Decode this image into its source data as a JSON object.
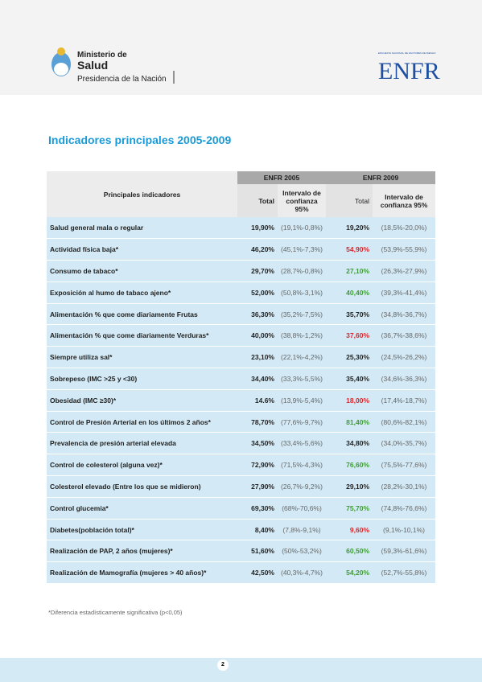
{
  "header": {
    "ministry_line1": "Ministerio de",
    "ministry_line2": "Salud",
    "ministry_line3": "Presidencia de la Nación",
    "enfr_small": "ENCUESTA NACIONAL DE FACTORES DE RIESGO",
    "enfr_logo": "ENFR"
  },
  "title": "Indicadores principales 2005-2009",
  "table": {
    "col_indicator": "Principales indicadores",
    "group_2005": "ENFR 2005",
    "group_2009": "ENFR 2009",
    "total_2005": "Total",
    "ic_2005": "Intervalo de confianza 95%",
    "total_2009": "Total",
    "ic_2009": "Intervalo de confianza 95%",
    "colors": {
      "up": "#3f9b35",
      "down": "#d6262b"
    },
    "rows": [
      [
        "Salud general mala o regular",
        "19,90%",
        "(19,1%-0,8%)",
        "19,20%",
        "(18,5%-20,0%)",
        null
      ],
      [
        "Actividad física baja*",
        "46,20%",
        "(45,1%-7,3%)",
        "54,90%",
        "(53,9%-55,9%)",
        "down"
      ],
      [
        "Consumo de tabaco*",
        "29,70%",
        "(28,7%-0,8%)",
        "27,10%",
        "(26,3%-27,9%)",
        "up"
      ],
      [
        "Exposición al humo de tabaco ajeno*",
        "52,00%",
        "(50,8%-3,1%)",
        "40,40%",
        "(39,3%-41,4%)",
        "up"
      ],
      [
        "Alimentación % que come diariamente Frutas",
        "36,30%",
        "(35,2%-7,5%)",
        "35,70%",
        "(34,8%-36,7%)",
        null
      ],
      [
        "Alimentación % que come diariamente Verduras*",
        "40,00%",
        "(38,8%-1,2%)",
        "37,60%",
        "(36,7%-38,6%)",
        "down"
      ],
      [
        "Siempre utiliza sal*",
        "23,10%",
        "(22,1%-4,2%)",
        "25,30%",
        "(24,5%-26,2%)",
        null
      ],
      [
        "Sobrepeso (IMC >25 y <30)",
        "34,40%",
        "(33,3%-5,5%)",
        "35,40%",
        "(34,6%-36,3%)",
        null
      ],
      [
        "Obesidad (IMC ≥30)*",
        "14.6%",
        "(13,9%-5,4%)",
        "18,00%",
        "(17,4%-18,7%)",
        "down"
      ],
      [
        "Control de Presión Arterial en los últimos 2 años*",
        "78,70%",
        "(77,6%-9,7%)",
        "81,40%",
        "(80,6%-82,1%)",
        "up"
      ],
      [
        "Prevalencia de presión arterial elevada",
        "34,50%",
        "(33,4%-5,6%)",
        "34,80%",
        "(34,0%-35,7%)",
        null
      ],
      [
        "Control de colesterol (alguna vez)*",
        "72,90%",
        "(71,5%-4,3%)",
        "76,60%",
        "(75,5%-77,6%)",
        "up"
      ],
      [
        "Colesterol elevado (Entre los que se midieron)",
        "27,90%",
        "(26,7%-9,2%)",
        "29,10%",
        "(28,2%-30,1%)",
        null
      ],
      [
        "Control glucemia*",
        "69,30%",
        "(68%-70,6%)",
        "75,70%",
        "(74,8%-76,6%)",
        "up"
      ],
      [
        "Diabetes(población total)*",
        "8,40%",
        "(7,8%-9,1%)",
        "9,60%",
        "(9,1%-10,1%)",
        "down"
      ],
      [
        "Realización de PAP, 2 años (mujeres)*",
        "51,60%",
        "(50%-53,2%)",
        "60,50%",
        "(59,3%-61,6%)",
        "up"
      ],
      [
        "Realización de Mamografía (mujeres > 40 años)*",
        "42,50%",
        "(40,3%-4,7%)",
        "54,20%",
        "(52,7%-55,8%)",
        "up"
      ]
    ]
  },
  "footnote": "*Diferencia estadísticamente significativa (p<0,05)",
  "page_number": "2"
}
